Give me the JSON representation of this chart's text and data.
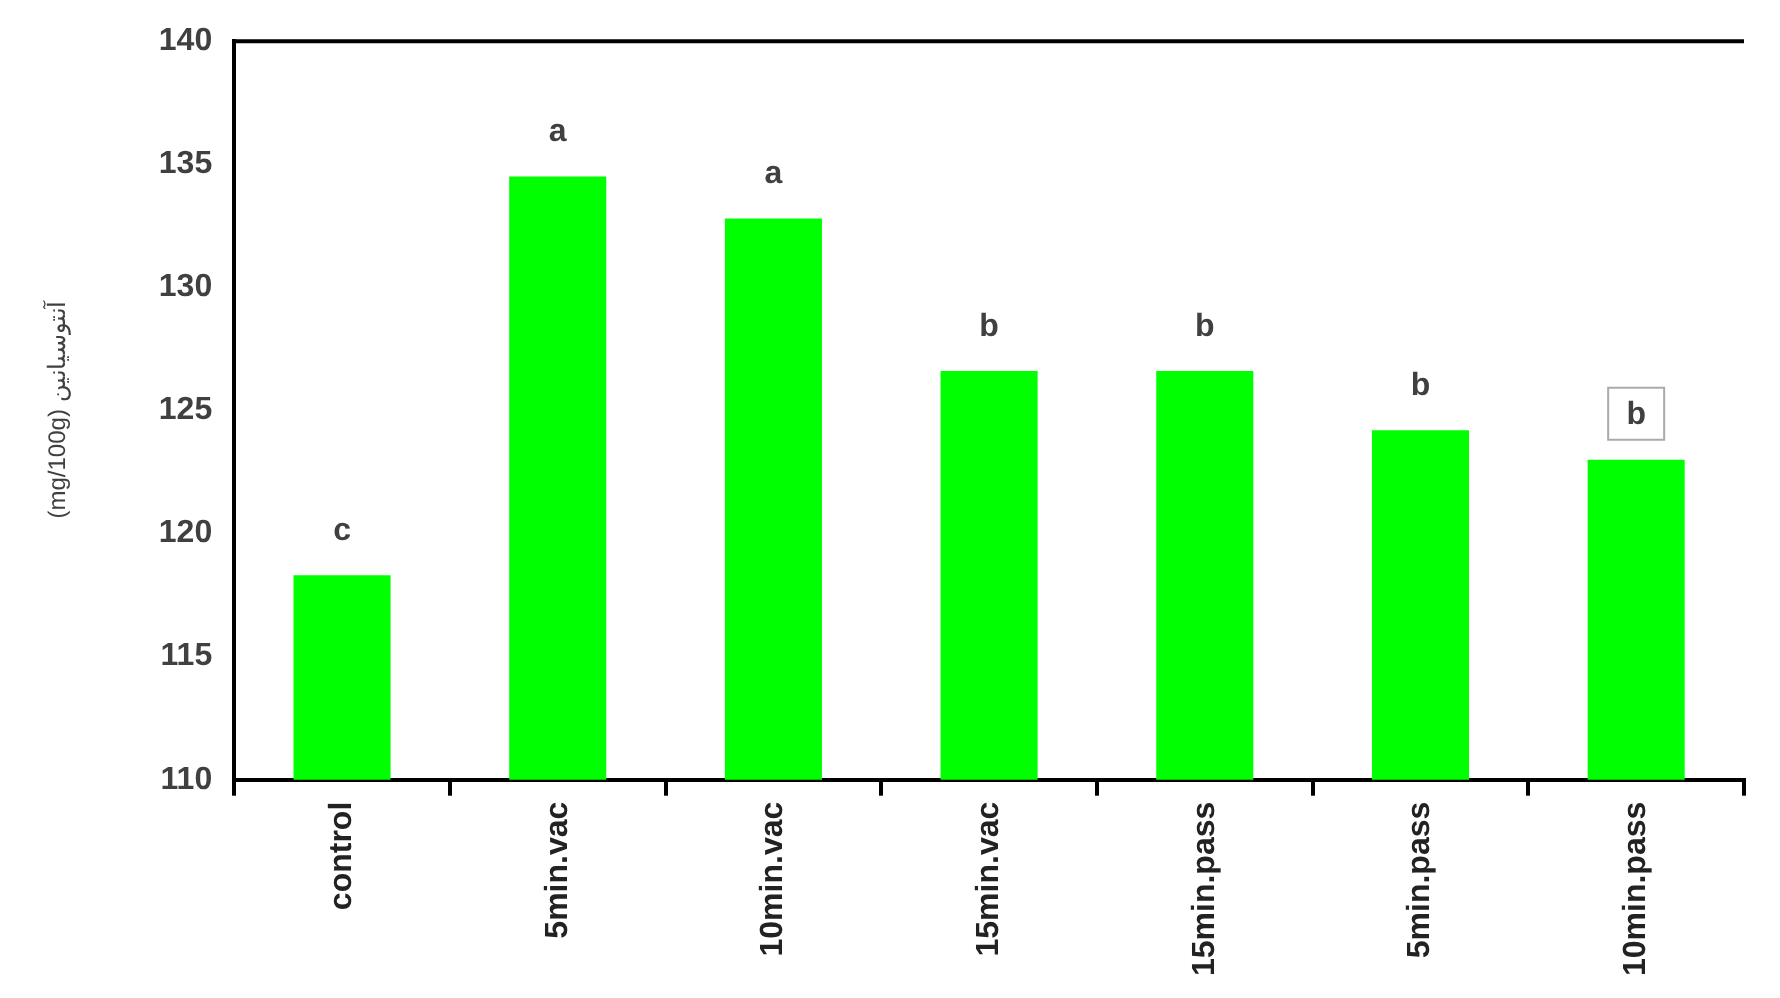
{
  "chart_data": {
    "type": "bar",
    "ylabel": "(mg/100g) آنتوسیانین",
    "categories": [
      "control",
      "5min.vac",
      "10min.vac",
      "15min.vac",
      "15min.pass",
      "5min.pass",
      "10min.pass"
    ],
    "values": [
      118.3,
      134.5,
      132.8,
      126.6,
      126.6,
      124.2,
      123.0
    ],
    "color": "#00ff00",
    "ylim": [
      110,
      140
    ],
    "yticks": [
      110,
      115,
      120,
      125,
      130,
      135,
      140
    ],
    "grid": false,
    "legend": false,
    "annotations": [
      {
        "text": "c",
        "x": "control",
        "y": 118.3
      },
      {
        "text": "a",
        "x": "5min.vac",
        "y": 134.5
      },
      {
        "text": "a",
        "x": "10min.vac",
        "y": 132.8
      },
      {
        "text": "b",
        "x": "15min.vac",
        "y": 126.6
      },
      {
        "text": "b",
        "x": "15min.pass",
        "y": 126.6
      },
      {
        "text": "b",
        "x": "5min.pass",
        "y": 124.2
      },
      {
        "text": "b",
        "x": "10min.pass",
        "y": 123.0
      }
    ]
  }
}
